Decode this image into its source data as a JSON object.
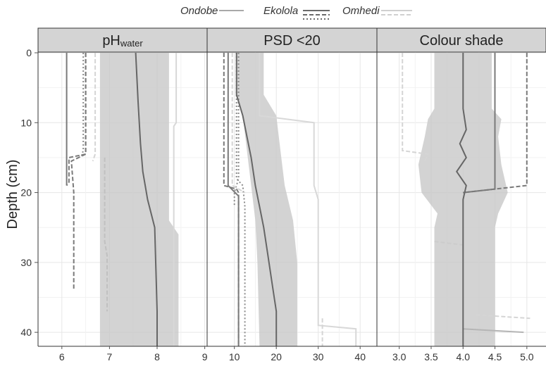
{
  "chart_data": {
    "type": "line",
    "ylabel": "Depth (cm)",
    "ylim": [
      0,
      42
    ],
    "y_ticks": [
      0,
      10,
      20,
      30,
      40
    ],
    "y_reversed": true,
    "grid": true,
    "legend_position": "top",
    "legend": [
      {
        "name": "Ondobe",
        "color": "#a8a8a8",
        "lines": [
          "solid"
        ]
      },
      {
        "name": "Ekolola",
        "color": "#6a6a6a",
        "lines": [
          "solid",
          "dashed",
          "dotted"
        ]
      },
      {
        "name": "Omhedi",
        "color": "#d0d0d0",
        "lines": [
          "solid",
          "dashed"
        ]
      }
    ],
    "panels": [
      {
        "title_main": "pH",
        "title_sub": "water",
        "xlim": [
          5.5,
          9.05
        ],
        "x_ticks": [
          6,
          7,
          8,
          9
        ],
        "band": {
          "depth": [
            0,
            24,
            26,
            41,
            42
          ],
          "lower": [
            6.8,
            6.8,
            6.8,
            6.8,
            6.8
          ],
          "upper": [
            8.25,
            8.25,
            8.45,
            8.45,
            8.45
          ]
        },
        "series": [
          {
            "color": "#7a7a7a",
            "dash": "solid",
            "width": 2,
            "x": [
              6.1,
              6.1
            ],
            "y": [
              0,
              19
            ]
          },
          {
            "color": "#7a7a7a",
            "dash": "dashed",
            "width": 2,
            "x": [
              6.5,
              6.5,
              6.2,
              6.25,
              6.25
            ],
            "y": [
              0,
              14.5,
              15.5,
              20,
              34
            ]
          },
          {
            "color": "#7a7a7a",
            "dash": "dashed",
            "width": 2,
            "x": [
              6.5,
              6.5,
              6.15,
              6.15,
              6.1
            ],
            "y": [
              0,
              14.5,
              15,
              18.5,
              19
            ]
          },
          {
            "color": "#8a8a8a",
            "dash": "dotted",
            "width": 2,
            "x": [
              6.45,
              6.45,
              6.4
            ],
            "y": [
              0,
              14,
              15
            ]
          },
          {
            "color": "#d5d5d5",
            "dash": "dashed",
            "width": 2,
            "x": [
              6.7,
              6.7,
              6.65
            ],
            "y": [
              0,
              14.5,
              15.5
            ]
          },
          {
            "color": "#c0c0c0",
            "dash": "dashed",
            "width": 2,
            "x": [
              6.9,
              6.9,
              6.95,
              6.95
            ],
            "y": [
              15,
              27,
              29,
              37
            ]
          },
          {
            "color": "#d8d8d8",
            "dash": "solid",
            "width": 2,
            "x": [
              8.4,
              8.4,
              8.35,
              8.35
            ],
            "y": [
              0,
              10,
              10.5,
              42
            ]
          },
          {
            "color": "#666666",
            "dash": "solid",
            "width": 2,
            "x": [
              7.55,
              7.6,
              7.65,
              7.7,
              7.75,
              7.8,
              7.95,
              8.0,
              8.0
            ],
            "y": [
              0,
              7,
              13,
              17,
              19,
              21,
              25,
              37,
              42
            ]
          }
        ]
      },
      {
        "title_main": "PSD <20",
        "title_sub": "",
        "xlim": [
          3.5,
          44
        ],
        "x_ticks": [
          10,
          20,
          30,
          40
        ],
        "band": {
          "depth": [
            0,
            6,
            9,
            14,
            19,
            24,
            30,
            42
          ],
          "lower": [
            10.5,
            10.5,
            12,
            13,
            14,
            15,
            15.5,
            16
          ],
          "upper": [
            17,
            17,
            20,
            21,
            22,
            24,
            25,
            25
          ]
        },
        "series": [
          {
            "color": "#7a7a7a",
            "dash": "solid",
            "width": 2,
            "x": [
              8.5,
              8.5,
              11,
              11
            ],
            "y": [
              0,
              19,
              20.5,
              42
            ]
          },
          {
            "color": "#7a7a7a",
            "dash": "dashed",
            "width": 2,
            "x": [
              7.5,
              7.5,
              10.5,
              11,
              11
            ],
            "y": [
              0,
              19,
              19.5,
              20,
              42
            ]
          },
          {
            "color": "#8a8a8a",
            "dash": "dotted",
            "width": 2,
            "x": [
              10.5,
              10.5,
              12,
              12.5,
              12.5
            ],
            "y": [
              0,
              18,
              19,
              22,
              42
            ]
          },
          {
            "color": "#8a8a8a",
            "dash": "dotted",
            "width": 2,
            "x": [
              11,
              11,
              10,
              10
            ],
            "y": [
              0,
              18,
              20,
              22
            ]
          },
          {
            "color": "#d5d5d5",
            "dash": "dashed",
            "width": 2,
            "x": [
              9.5,
              9.5,
              12.5
            ],
            "y": [
              0,
              19,
              20
            ]
          },
          {
            "color": "#d8d8d8",
            "dash": "solid",
            "width": 2,
            "x": [
              16,
              16,
              29,
              29,
              30,
              30,
              39,
              39
            ],
            "y": [
              0,
              9,
              10,
              19,
              21,
              39,
              39.5,
              42
            ]
          },
          {
            "color": "#d5d5d5",
            "dash": "dashed",
            "width": 2,
            "x": [
              31,
              31
            ],
            "y": [
              38,
              42
            ]
          },
          {
            "color": "#666666",
            "dash": "solid",
            "width": 2,
            "x": [
              10.5,
              10.5,
              12,
              13,
              14,
              15,
              16,
              17,
              18,
              19,
              20,
              20
            ],
            "y": [
              0,
              6,
              9,
              12,
              15,
              19,
              22,
              25,
              29,
              33,
              37,
              42
            ]
          }
        ]
      },
      {
        "title_main": "Colour shade",
        "title_sub": "",
        "xlim": [
          2.65,
          5.3
        ],
        "x_ticks": [
          3.0,
          3.5,
          4.0,
          4.5,
          5.0
        ],
        "x_tick_labels": [
          "3.0",
          "3.5",
          "4.0",
          "4.5",
          "5.0"
        ],
        "band": {
          "depth": [
            0,
            8,
            9.5,
            12,
            16,
            20,
            23,
            25,
            42
          ],
          "lower": [
            3.55,
            3.55,
            3.45,
            3.4,
            3.3,
            3.35,
            3.6,
            3.55,
            3.55
          ],
          "upper": [
            4.45,
            4.45,
            4.6,
            4.55,
            4.6,
            4.7,
            4.55,
            4.5,
            4.5
          ]
        },
        "series": [
          {
            "color": "#7a7a7a",
            "dash": "solid",
            "width": 2,
            "x": [
              4.5,
              4.5,
              4.0
            ],
            "y": [
              0,
              19.5,
              20
            ]
          },
          {
            "color": "#7a7a7a",
            "dash": "dashed",
            "width": 2,
            "x": [
              5.0,
              5.0,
              4.0
            ],
            "y": [
              0,
              19,
              20
            ]
          },
          {
            "color": "#d5d5d5",
            "dash": "dashed",
            "width": 2,
            "x": [
              3.05,
              3.05,
              3.45,
              3.4
            ],
            "y": [
              0,
              14,
              14.5,
              15.5
            ]
          },
          {
            "color": "#cccccc",
            "dash": "dashed",
            "width": 2,
            "x": [
              3.55,
              4.0
            ],
            "y": [
              27,
              27.5
            ]
          },
          {
            "color": "#d5d5d5",
            "dash": "dashed",
            "width": 2,
            "x": [
              4.2,
              5.05
            ],
            "y": [
              37.5,
              38
            ]
          },
          {
            "color": "#b5b5b5",
            "dash": "solid",
            "width": 2,
            "x": [
              4.0,
              4.95
            ],
            "y": [
              39.5,
              40
            ]
          },
          {
            "color": "#666666",
            "dash": "solid",
            "width": 2,
            "x": [
              4.0,
              4.0,
              4.05,
              3.95,
              4.05,
              3.9,
              4.05,
              4.0,
              4.0
            ],
            "y": [
              0,
              8,
              11,
              13,
              15,
              17,
              19,
              21,
              42
            ]
          }
        ]
      }
    ]
  }
}
